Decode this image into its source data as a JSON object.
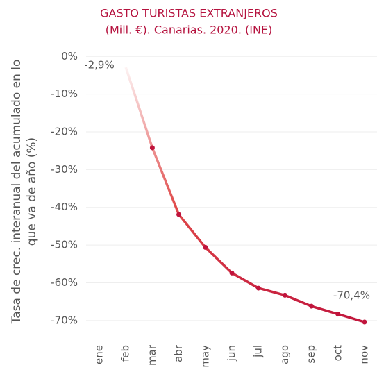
{
  "chart_data": {
    "type": "line",
    "title": [
      "GASTO TURISTAS EXTRANJEROS",
      "(Mill. €). Canarias. 2020. (INE)"
    ],
    "y_label": [
      "Tasa de crec. interanual del acumulado en lo",
      "que va de año (%)"
    ],
    "categories": [
      "ene",
      "feb",
      "mar",
      "abr",
      "may",
      "jun",
      "jul",
      "ago",
      "sep",
      "oct",
      "nov"
    ],
    "series": [
      {
        "color": "#c0143c",
        "values": [
          null,
          -2.9,
          -24.2,
          -41.9,
          -50.6,
          -57.4,
          -61.4,
          -63.3,
          -66.2,
          -68.3,
          -70.4
        ],
        "value_labels": [
          null,
          "-2,9%",
          null,
          null,
          null,
          null,
          null,
          null,
          null,
          null,
          "-70,4%"
        ]
      }
    ],
    "ylim": [
      3,
      -75
    ],
    "yticks": [
      {
        "value": 0,
        "label": "0%"
      },
      {
        "value": -10,
        "label": "-10%"
      },
      {
        "value": -20,
        "label": "-20%"
      },
      {
        "value": -30,
        "label": "-30%"
      },
      {
        "value": -40,
        "label": "-40%"
      },
      {
        "value": -50,
        "label": "-50%"
      },
      {
        "value": -60,
        "label": "-60%"
      },
      {
        "value": -70,
        "label": "-70%"
      }
    ],
    "grid": true
  }
}
